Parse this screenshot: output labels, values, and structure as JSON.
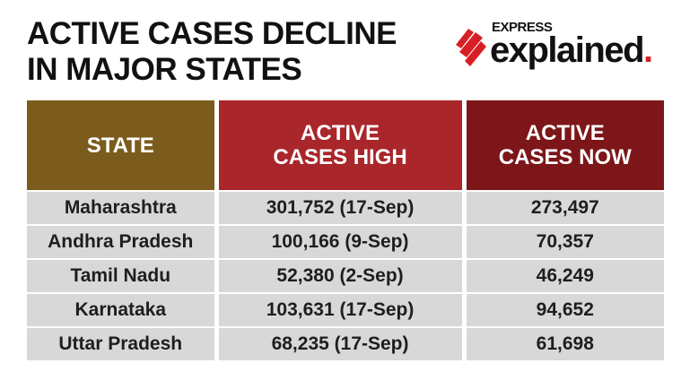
{
  "header": {
    "title_lines": [
      "ACTIVE CASES DECLINE",
      "IN MAJOR STATES"
    ]
  },
  "logo": {
    "top": "EXPRESS",
    "name": "explained",
    "dot": "."
  },
  "table": {
    "columns": [
      "STATE",
      "ACTIVE CASES HIGH",
      "ACTIVE CASES NOW"
    ],
    "rows": [
      [
        "Maharashtra",
        "301,752 (17-Sep)",
        "273,497"
      ],
      [
        "Andhra Pradesh",
        "100,166 (9-Sep)",
        "70,357"
      ],
      [
        "Tamil Nadu",
        "52,380 (2-Sep)",
        "46,249"
      ],
      [
        "Karnataka",
        "103,631 (17-Sep)",
        "94,652"
      ],
      [
        "Uttar Pradesh",
        "68,235 (17-Sep)",
        "61,698"
      ]
    ]
  }
}
